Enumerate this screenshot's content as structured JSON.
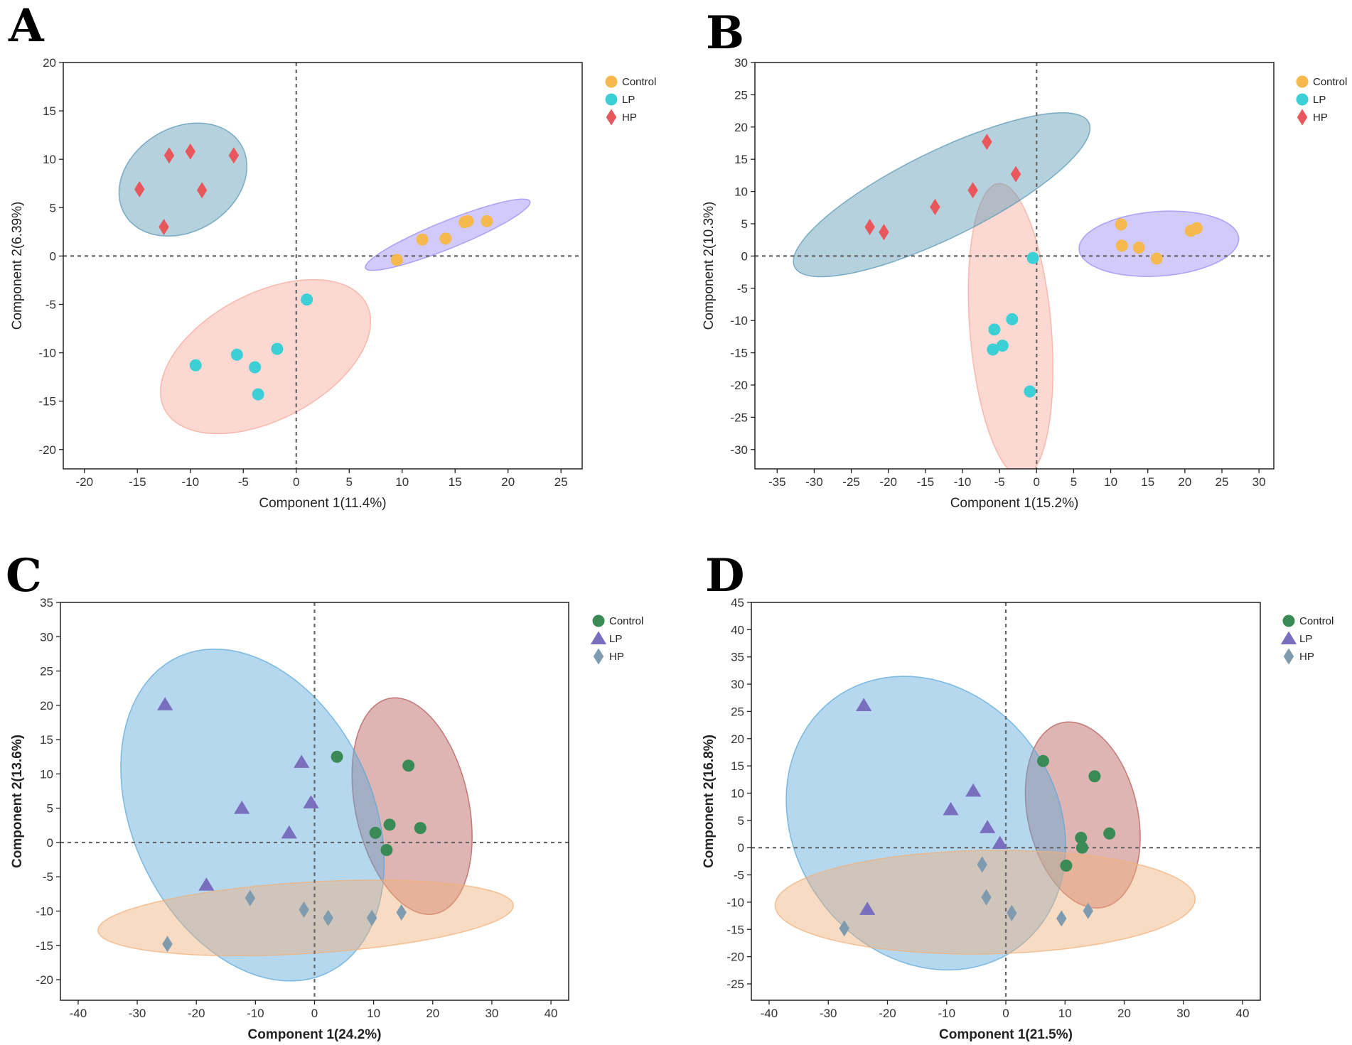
{
  "chart_data": [
    {
      "panel": "A",
      "type": "scatter",
      "xlabel": "Component 1(11.4%)",
      "ylabel": "Component 2(6.39%)",
      "bold_labels": false,
      "xlim": [
        -22,
        27
      ],
      "ylim": [
        -22,
        20
      ],
      "xticks": [
        -20,
        -15,
        -10,
        -5,
        0,
        5,
        10,
        15,
        20,
        25
      ],
      "yticks": [
        -20,
        -15,
        -10,
        -5,
        0,
        5,
        10,
        15,
        20
      ],
      "legend_position": "right",
      "series": [
        {
          "name": "Control",
          "marker": "circle",
          "color": "#F5B94D",
          "points": [
            [
              9.5,
              -0.4
            ],
            [
              11.9,
              1.7
            ],
            [
              14.1,
              1.8
            ],
            [
              15.9,
              3.5
            ],
            [
              16.2,
              3.6
            ],
            [
              18.0,
              3.6
            ]
          ]
        },
        {
          "name": "LP",
          "marker": "circle",
          "color": "#3DCFD6",
          "points": [
            [
              1.0,
              -4.5
            ],
            [
              -1.8,
              -9.6
            ],
            [
              -5.6,
              -10.2
            ],
            [
              -3.9,
              -11.5
            ],
            [
              -9.5,
              -11.3
            ],
            [
              -3.6,
              -14.3
            ]
          ]
        },
        {
          "name": "HP",
          "marker": "diamond",
          "color": "#E8575C",
          "points": [
            [
              -10.0,
              10.8
            ],
            [
              -12.0,
              10.4
            ],
            [
              -5.9,
              10.4
            ],
            [
              -14.8,
              6.9
            ],
            [
              -8.9,
              6.8
            ],
            [
              -12.5,
              3.0
            ]
          ]
        }
      ],
      "ellipses": [
        {
          "group": "Control",
          "color": "#9B8AF5",
          "cx": 14.3,
          "cy": 2.2,
          "rx": 8.5,
          "ry": 1.4,
          "angle": 24
        },
        {
          "group": "LP",
          "color": "#F7A89A",
          "cx": -2.9,
          "cy": -10.4,
          "rx": 11.0,
          "ry": 6.4,
          "angle": 32
        },
        {
          "group": "HP",
          "color": "#5A98B5",
          "cx": -10.7,
          "cy": 7.9,
          "rx": 6.6,
          "ry": 5.2,
          "angle": 41
        }
      ]
    },
    {
      "panel": "B",
      "type": "scatter",
      "xlabel": "Component 1(15.2%)",
      "ylabel": "Component 2(10.3%)",
      "bold_labels": false,
      "xlim": [
        -38,
        32
      ],
      "ylim": [
        -33,
        30
      ],
      "xticks": [
        -35,
        -30,
        -25,
        -20,
        -15,
        -10,
        -5,
        0,
        5,
        10,
        15,
        20,
        25,
        30
      ],
      "yticks": [
        -30,
        -25,
        -20,
        -15,
        -10,
        -5,
        0,
        5,
        10,
        15,
        20,
        25,
        30
      ],
      "legend_position": "right",
      "series": [
        {
          "name": "Control",
          "marker": "circle",
          "color": "#F5B94D",
          "points": [
            [
              11.4,
              4.9
            ],
            [
              11.5,
              1.6
            ],
            [
              13.8,
              1.3
            ],
            [
              16.2,
              -0.4
            ],
            [
              20.8,
              3.9
            ],
            [
              21.6,
              4.3
            ]
          ]
        },
        {
          "name": "LP",
          "marker": "circle",
          "color": "#3DCFD6",
          "points": [
            [
              -0.5,
              -0.3
            ],
            [
              -3.3,
              -9.8
            ],
            [
              -5.7,
              -11.4
            ],
            [
              -4.6,
              -13.9
            ],
            [
              -5.9,
              -14.5
            ],
            [
              -0.9,
              -21.0
            ]
          ]
        },
        {
          "name": "HP",
          "marker": "diamond",
          "color": "#E8575C",
          "points": [
            [
              -6.7,
              17.7
            ],
            [
              -2.8,
              12.7
            ],
            [
              -8.6,
              10.2
            ],
            [
              -13.7,
              7.6
            ],
            [
              -22.5,
              4.5
            ],
            [
              -20.6,
              3.7
            ]
          ]
        }
      ],
      "ellipses": [
        {
          "group": "Control",
          "color": "#9B8AF5",
          "cx": 16.5,
          "cy": 1.9,
          "rx": 10.8,
          "ry": 5.0,
          "angle": 5
        },
        {
          "group": "LP",
          "color": "#F7A89A",
          "cx": -3.5,
          "cy": -11.5,
          "rx": 22.8,
          "ry": 5.5,
          "angle": -86
        },
        {
          "group": "HP",
          "color": "#5A98B5",
          "cx": -12.8,
          "cy": 9.5,
          "rx": 22.8,
          "ry": 6.5,
          "angle": 30
        }
      ]
    },
    {
      "panel": "C",
      "type": "scatter",
      "xlabel": "Component 1(24.2%)",
      "ylabel": "Component 2(13.6%)",
      "bold_labels": true,
      "xlim": [
        -43,
        43
      ],
      "ylim": [
        -23,
        35
      ],
      "xticks": [
        -40,
        -30,
        -20,
        -10,
        0,
        10,
        20,
        30,
        40
      ],
      "yticks": [
        -20,
        -15,
        -10,
        -5,
        0,
        5,
        10,
        15,
        20,
        25,
        30,
        35
      ],
      "legend_position": "right",
      "series": [
        {
          "name": "Control",
          "marker": "circle",
          "color": "#3A8A55",
          "points": [
            [
              3.8,
              12.5
            ],
            [
              15.9,
              11.2
            ],
            [
              12.7,
              2.6
            ],
            [
              10.3,
              1.4
            ],
            [
              17.9,
              2.1
            ],
            [
              12.2,
              -1.1
            ]
          ]
        },
        {
          "name": "LP",
          "marker": "triangle",
          "color": "#7A6FBE",
          "points": [
            [
              -25.3,
              20.1
            ],
            [
              -2.2,
              11.7
            ],
            [
              -12.3,
              5.0
            ],
            [
              -0.6,
              5.8
            ],
            [
              -4.3,
              1.4
            ],
            [
              -18.3,
              -6.2
            ]
          ]
        },
        {
          "name": "HP",
          "marker": "diamond",
          "color": "#7F9BAF",
          "points": [
            [
              -10.9,
              -8.1
            ],
            [
              -1.8,
              -9.8
            ],
            [
              2.3,
              -11.0
            ],
            [
              9.7,
              -11.0
            ],
            [
              14.7,
              -10.2
            ],
            [
              -24.9,
              -14.8
            ]
          ]
        }
      ],
      "ellipses": [
        {
          "group": "Control",
          "color": "#B55A55",
          "cx": 16.5,
          "cy": 5.3,
          "rx": 16.2,
          "ry": 9.5,
          "angle": -74
        },
        {
          "group": "LP",
          "color": "#5CA8D9",
          "cx": -10.5,
          "cy": 4.0,
          "rx": 26.5,
          "ry": 19.5,
          "angle": -53
        },
        {
          "group": "HP",
          "color": "#F0B07A",
          "cx": -1.5,
          "cy": -11.0,
          "rx": 35.2,
          "ry": 5.2,
          "angle": 3
        }
      ]
    },
    {
      "panel": "D",
      "type": "scatter",
      "xlabel": "Component 1(21.5%)",
      "ylabel": "Component 2(16.8%)",
      "bold_labels": true,
      "xlim": [
        -43,
        43
      ],
      "ylim": [
        -28,
        45
      ],
      "xticks": [
        -40,
        -30,
        -20,
        -10,
        0,
        10,
        20,
        30,
        40
      ],
      "yticks": [
        -25,
        -20,
        -15,
        -10,
        -5,
        0,
        5,
        10,
        15,
        20,
        25,
        30,
        35,
        40,
        45
      ],
      "legend_position": "right",
      "series": [
        {
          "name": "Control",
          "marker": "circle",
          "color": "#3A8A55",
          "points": [
            [
              6.3,
              15.9
            ],
            [
              15.0,
              13.1
            ],
            [
              17.5,
              2.6
            ],
            [
              12.7,
              1.8
            ],
            [
              12.9,
              0.0
            ],
            [
              10.2,
              -3.3
            ]
          ]
        },
        {
          "name": "LP",
          "marker": "triangle",
          "color": "#7A6FBE",
          "points": [
            [
              -24.0,
              26.1
            ],
            [
              -5.5,
              10.4
            ],
            [
              -9.3,
              7.0
            ],
            [
              -3.1,
              3.7
            ],
            [
              -1.0,
              0.8
            ],
            [
              -23.4,
              -11.3
            ]
          ]
        },
        {
          "name": "HP",
          "marker": "diamond",
          "color": "#7F9BAF",
          "points": [
            [
              -4.0,
              -3.1
            ],
            [
              -3.3,
              -9.1
            ],
            [
              1.0,
              -12.0
            ],
            [
              9.4,
              -13.0
            ],
            [
              13.9,
              -11.6
            ],
            [
              -27.3,
              -14.8
            ]
          ]
        }
      ],
      "ellipses": [
        {
          "group": "Control",
          "color": "#B55A55",
          "cx": 13.0,
          "cy": 6.0,
          "rx": 17.3,
          "ry": 9.3,
          "angle": -79
        },
        {
          "group": "LP",
          "color": "#5CA8D9",
          "cx": -13.5,
          "cy": 4.5,
          "rx": 27.8,
          "ry": 22.6,
          "angle": -65
        },
        {
          "group": "HP",
          "color": "#F0B07A",
          "cx": -3.5,
          "cy": -10.0,
          "rx": 35.5,
          "ry": 9.5,
          "angle": 1
        }
      ]
    }
  ]
}
